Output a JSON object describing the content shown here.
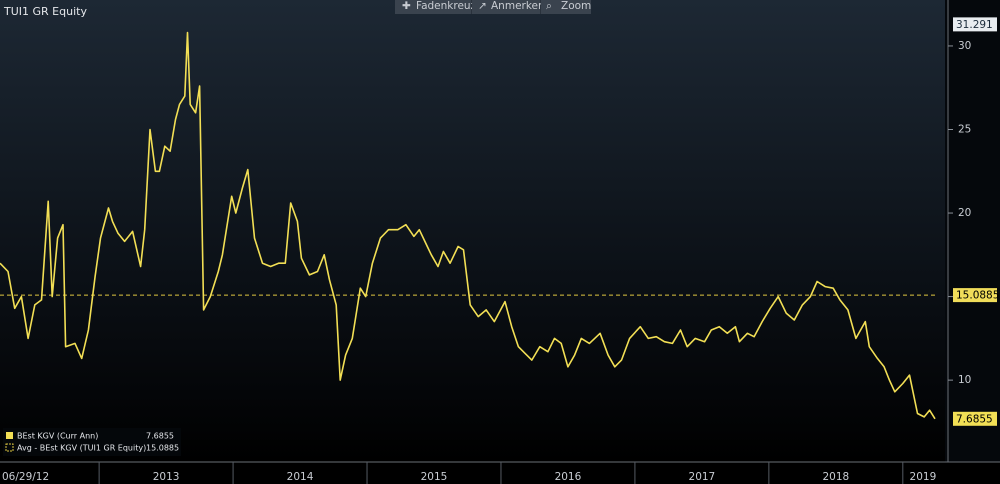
{
  "toolbar": [
    "Fadenkreuz",
    "Anmerken",
    "Zoom"
  ],
  "chart_data": {
    "type": "line",
    "title": "TUI1 GR Equity",
    "x": [
      2012.26,
      2012.32,
      2012.37,
      2012.42,
      2012.47,
      2012.52,
      2012.57,
      2012.62,
      2012.65,
      2012.69,
      2012.73,
      2012.75,
      2012.82,
      2012.87,
      2012.92,
      2012.97,
      2013.01,
      2013.07,
      2013.1,
      2013.14,
      2013.19,
      2013.25,
      2013.31,
      2013.34,
      2013.38,
      2013.42,
      2013.45,
      2013.49,
      2013.53,
      2013.57,
      2013.6,
      2013.64,
      2013.66,
      2013.68,
      2013.72,
      2013.75,
      2013.78,
      2013.83,
      2013.89,
      2013.92,
      2013.96,
      2013.99,
      2014.02,
      2014.07,
      2014.11,
      2014.16,
      2014.22,
      2014.28,
      2014.34,
      2014.39,
      2014.43,
      2014.48,
      2014.51,
      2014.57,
      2014.63,
      2014.68,
      2014.72,
      2014.77,
      2014.8,
      2014.84,
      2014.89,
      2014.95,
      2014.99,
      2015.04,
      2015.1,
      2015.16,
      2015.23,
      2015.29,
      2015.35,
      2015.39,
      2015.45,
      2015.48,
      2015.53,
      2015.57,
      2015.62,
      2015.68,
      2015.72,
      2015.77,
      2015.83,
      2015.89,
      2015.95,
      2016.03,
      2016.08,
      2016.13,
      2016.18,
      2016.23,
      2016.29,
      2016.35,
      2016.4,
      2016.45,
      2016.5,
      2016.55,
      2016.6,
      2016.66,
      2016.74,
      2016.8,
      2016.85,
      2016.9,
      2016.96,
      2017.04,
      2017.1,
      2017.16,
      2017.22,
      2017.28,
      2017.34,
      2017.39,
      2017.45,
      2017.52,
      2017.57,
      2017.63,
      2017.69,
      2017.75,
      2017.78,
      2017.84,
      2017.89,
      2017.95,
      2018.01,
      2018.07,
      2018.13,
      2018.19,
      2018.25,
      2018.31,
      2018.36,
      2018.42,
      2018.48,
      2018.53,
      2018.59,
      2018.65,
      2018.72,
      2018.75,
      2018.81,
      2018.86,
      2018.9,
      2018.94,
      2019.0,
      2019.05,
      2019.11,
      2019.16,
      2019.2,
      2019.24
    ],
    "series": [
      {
        "name": "BEst KGV (Curr Ann)",
        "color": "#f2df55",
        "values": [
          17,
          16.5,
          14.3,
          15,
          12.5,
          14.5,
          14.8,
          20.7,
          15,
          18.5,
          19.3,
          12,
          12.2,
          11.3,
          13,
          16.2,
          18.5,
          20.3,
          19.5,
          18.8,
          18.3,
          18.9,
          16.8,
          19,
          25,
          22.5,
          22.5,
          24,
          23.7,
          25.6,
          26.5,
          27,
          30.8,
          26.5,
          26,
          27.6,
          14.2,
          15,
          16.5,
          17.5,
          19.5,
          21,
          20,
          21.5,
          22.6,
          18.5,
          17,
          16.8,
          17,
          17,
          20.6,
          19.5,
          17.3,
          16.3,
          16.5,
          17.5,
          16,
          14.5,
          10,
          11.5,
          12.5,
          15.5,
          15,
          17,
          18.5,
          19,
          19,
          19.3,
          18.6,
          19,
          18,
          17.5,
          16.8,
          17.7,
          17,
          18,
          17.8,
          14.5,
          13.8,
          14.2,
          13.5,
          14.7,
          13.2,
          12,
          11.6,
          11.2,
          12,
          11.7,
          12.5,
          12.2,
          10.8,
          11.5,
          12.5,
          12.2,
          12.8,
          11.5,
          10.8,
          11.2,
          12.5,
          13.2,
          12.5,
          12.6,
          12.3,
          12.2,
          13,
          12,
          12.5,
          12.3,
          13,
          13.2,
          12.8,
          13.2,
          12.3,
          12.8,
          12.6,
          13.5,
          14.3,
          15,
          14,
          13.6,
          14.5,
          15,
          15.9,
          15.6,
          15.5,
          14.8,
          14.2,
          12.5,
          13.5,
          12,
          11.3,
          10.8,
          10,
          9.3,
          9.8,
          10.3,
          8,
          7.8,
          8.2,
          7.6855
        ]
      }
    ],
    "average": {
      "name": "Avg - BEst KGV (TUI1 GR Equity)",
      "value": 15.0885,
      "color": "#e0c840"
    },
    "axis_top_value": 31.291,
    "start_label": "06/29/12",
    "xlim": [
      2012.26,
      2019.3
    ],
    "xticks": [
      2013,
      2014,
      2015,
      2016,
      2017,
      2018,
      2019
    ],
    "ylim": [
      5.1,
      32.75
    ],
    "yticks": [
      10,
      15,
      20,
      25,
      30
    ]
  }
}
